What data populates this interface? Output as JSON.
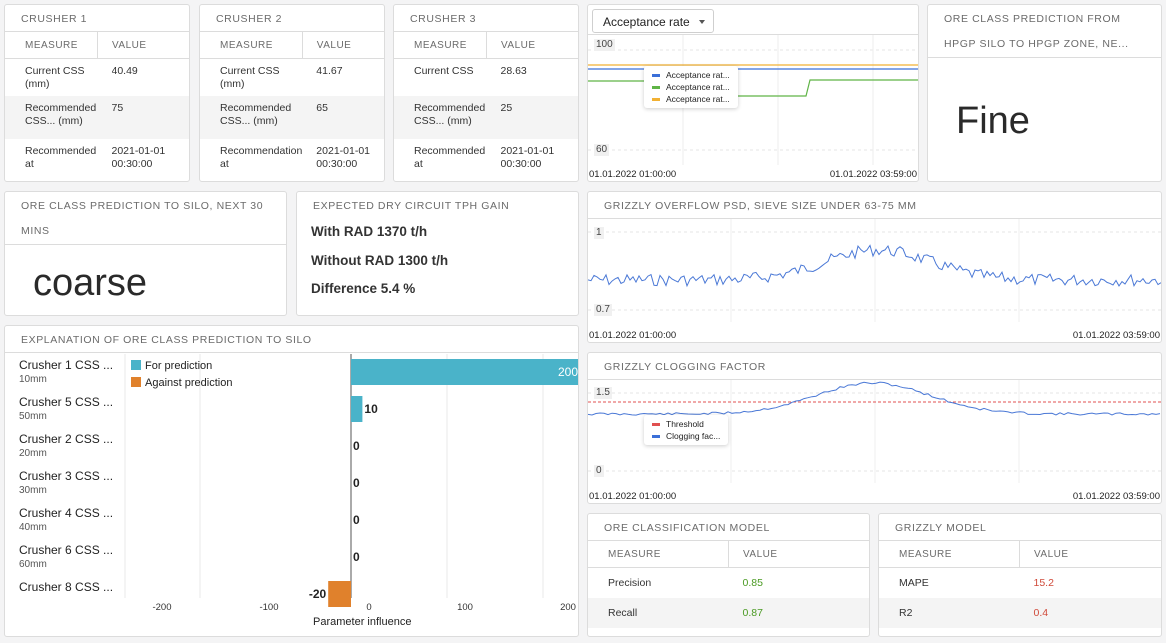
{
  "crushers": [
    {
      "title": "CRUSHER 1",
      "headers": [
        "MEASURE",
        "VALUE"
      ],
      "rows": [
        {
          "measure": "Current CSS (mm)",
          "value": "40.49"
        },
        {
          "measure": "Recommended CSS... (mm)",
          "value": "75"
        },
        {
          "measure": "Recommended at",
          "value": "2021-01-01 00:30:00"
        }
      ]
    },
    {
      "title": "CRUSHER 2",
      "headers": [
        "MEASURE",
        "VALUE"
      ],
      "rows": [
        {
          "measure": "Current CSS (mm)",
          "value": "41.67"
        },
        {
          "measure": "Recommended CSS... (mm)",
          "value": "65"
        },
        {
          "measure": "Recommendation at",
          "value": "2021-01-01 00:30:00"
        }
      ]
    },
    {
      "title": "CRUSHER 3",
      "headers": [
        "MEASURE",
        "VALUE"
      ],
      "rows": [
        {
          "measure": "Current CSS",
          "value": "28.63"
        },
        {
          "measure": "Recommended CSS... (mm)",
          "value": "25"
        },
        {
          "measure": "Recommended at",
          "value": "2021-01-01 00:30:00"
        }
      ]
    }
  ],
  "acceptance": {
    "dropdown": "Acceptance rate",
    "y_top": "100",
    "y_bottom": "60",
    "x_start": "01.01.2022 01:00:00",
    "x_end": "01.01.2022 03:59:00",
    "legend": [
      {
        "label": "Acceptance rat...",
        "color": "#3b6fd8"
      },
      {
        "label": "Acceptance rat...",
        "color": "#5fb446"
      },
      {
        "label": "Acceptance rat...",
        "color": "#f2b133"
      }
    ]
  },
  "ore_class_hpgp": {
    "title1": "ORE CLASS PREDICTION FROM",
    "title2": "HPGP SILO TO HPGP ZONE, NE...",
    "value": "Fine"
  },
  "ore_class_silo": {
    "title1": "ORE CLASS PREDICTION TO SILO, NEXT 30",
    "title2": "MINS",
    "value": "coarse"
  },
  "tph_gain": {
    "title": "EXPECTED DRY CIRCUIT TPH GAIN",
    "lines": [
      "With RAD 1370 t/h",
      "Without RAD 1300 t/h",
      "Difference 5.4 %"
    ]
  },
  "explanation": {
    "title": "EXPLANATION OF ORE CLASS PREDICTION TO SILO",
    "legend_for": "For prediction",
    "legend_against": "Against prediction",
    "color_for": "#4ab3c9",
    "color_against": "#e0812c",
    "xlabel": "Parameter influence",
    "ticks": [
      "-200",
      "-100",
      "0",
      "100",
      "200"
    ],
    "rows": [
      {
        "name": "Crusher 1 CSS ...",
        "sub": "10mm",
        "value": 200,
        "label": "200"
      },
      {
        "name": "Crusher 5 CSS ...",
        "sub": "50mm",
        "value": 10,
        "label": "10"
      },
      {
        "name": "Crusher 2 CSS ...",
        "sub": "20mm",
        "value": 0,
        "label": "0"
      },
      {
        "name": "Crusher 3 CSS ...",
        "sub": "30mm",
        "value": 0,
        "label": "0"
      },
      {
        "name": "Crusher 4 CSS ...",
        "sub": "40mm",
        "value": 0,
        "label": "0"
      },
      {
        "name": "Crusher 6 CSS ...",
        "sub": "60mm",
        "value": 0,
        "label": "0"
      },
      {
        "name": "Crusher 8 CSS ...",
        "sub": "",
        "value": -20,
        "label": "-20"
      }
    ]
  },
  "grizzly_psd": {
    "title": "GRIZZLY OVERFLOW PSD, SIEVE SIZE UNDER 63-75 MM",
    "y_top": "1",
    "y_bottom": "0.7",
    "x_start": "01.01.2022 01:00:00",
    "x_end": "01.01.2022 03:59:00"
  },
  "grizzly_clog": {
    "title": "GRIZZLY CLOGGING FACTOR",
    "y_top": "1.5",
    "y_bottom": "0",
    "x_start": "01.01.2022 01:00:00",
    "x_end": "01.01.2022 03:59:00",
    "legend": [
      {
        "label": "Threshold",
        "color": "#e05050"
      },
      {
        "label": "Clogging fac...",
        "color": "#3b6fd8"
      }
    ]
  },
  "ore_model": {
    "title": "ORE CLASSIFICATION MODEL",
    "headers": [
      "MEASURE",
      "VALUE"
    ],
    "rows": [
      {
        "measure": "Precision",
        "value": "0.85"
      },
      {
        "measure": "Recall",
        "value": "0.87"
      }
    ]
  },
  "grizzly_model": {
    "title": "GRIZZLY MODEL",
    "headers": [
      "MEASURE",
      "VALUE"
    ],
    "rows": [
      {
        "measure": "MAPE",
        "value": "15.2"
      },
      {
        "measure": "R2",
        "value": "0.4"
      }
    ]
  }
}
